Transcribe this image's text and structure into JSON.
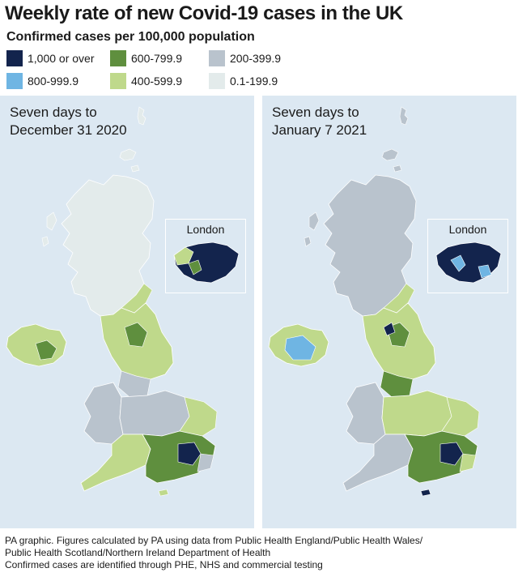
{
  "header": {
    "title": "Weekly rate of new Covid-19 cases in the UK",
    "subtitle": "Confirmed cases per 100,000 population"
  },
  "legend": [
    {
      "label": "1,000 or over",
      "color": "#13244d"
    },
    {
      "label": "800-999.9",
      "color": "#6fb5e3"
    },
    {
      "label": "600-799.9",
      "color": "#5f8f3e"
    },
    {
      "label": "400-599.9",
      "color": "#bfd98b"
    },
    {
      "label": "200-399.9",
      "color": "#b9c3cd"
    },
    {
      "label": "0.1-199.9",
      "color": "#e3ebeb"
    }
  ],
  "panels": [
    {
      "heading_line1": "Seven days to",
      "heading_line2": "December 31 2020",
      "inset_label": "London",
      "regions": {
        "scotland": "0.1-199.9",
        "northern_ireland": "400-599.9",
        "north_england": "400-599.9",
        "wales": "200-399.9",
        "midlands": "200-399.9",
        "south_east": "600-799.9",
        "london": "1,000 or over"
      }
    },
    {
      "heading_line1": "Seven days to",
      "heading_line2": "January 7 2021",
      "inset_label": "London",
      "regions": {
        "scotland": "200-399.9",
        "northern_ireland": "800-999.9",
        "north_england": "400-599.9",
        "wales": "200-399.9",
        "midlands": "400-599.9",
        "south_east": "600-799.9",
        "london": "1,000 or over"
      }
    }
  ],
  "footer": {
    "line1": "PA graphic. Figures calculated by PA using data from Public Health England/Public Health Wales/",
    "line2": "Public Health Scotland/Northern Ireland Department of Health",
    "line3": "Confirmed cases are identified through PHE, NHS and commercial testing"
  }
}
